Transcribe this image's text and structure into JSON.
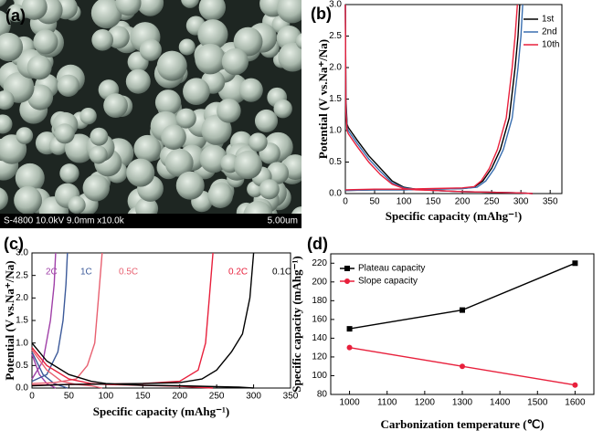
{
  "image_panel": {
    "label": "(a)",
    "caption": "S-4800 10.0kV 9.0mm x10.0k",
    "scale_bar": "5.00um"
  },
  "chart_data": [
    {
      "type": "line",
      "label": "(b)",
      "xlabel": "Specific capacity (mAhg⁻¹)",
      "ylabel": "Potential (V vs.Na⁺/Na)",
      "xlim": [
        0,
        370
      ],
      "xticks": [
        0,
        50,
        100,
        150,
        200,
        250,
        300,
        350
      ],
      "ylim": [
        0,
        3.0
      ],
      "yticks": [
        {
          "value": 0,
          "label": "0.0"
        },
        0.5,
        {
          "value": 1,
          "label": "1.0"
        },
        1.5,
        {
          "value": 2,
          "label": "2.0"
        },
        2.5,
        {
          "value": 3,
          "label": "3.0"
        }
      ],
      "legend": "upper right",
      "series": [
        {
          "name": "1st",
          "color": "#000000",
          "x": [
            0,
            1,
            3,
            5,
            20,
            40,
            60,
            80,
            100,
            120,
            150,
            200,
            250,
            300,
            320,
            null,
            0,
            50,
            100,
            150,
            200,
            220,
            235,
            250,
            265,
            280,
            290,
            295,
            298
          ],
          "values": [
            3.0,
            1.5,
            1.1,
            1.05,
            0.85,
            0.6,
            0.4,
            0.2,
            0.1,
            0.07,
            0.05,
            0.03,
            0.02,
            0.01,
            0.0,
            null,
            0.05,
            0.06,
            0.06,
            0.07,
            0.08,
            0.1,
            0.2,
            0.4,
            0.7,
            1.2,
            2.0,
            2.5,
            3.0
          ]
        },
        {
          "name": "2nd",
          "color": "#3a6fb0",
          "x": [
            0,
            1,
            3,
            5,
            20,
            40,
            60,
            80,
            100,
            120,
            150,
            200,
            250,
            300,
            320,
            null,
            0,
            50,
            100,
            150,
            200,
            225,
            240,
            255,
            270,
            285,
            295,
            300,
            303
          ],
          "values": [
            3.0,
            1.4,
            1.05,
            1.0,
            0.8,
            0.55,
            0.35,
            0.17,
            0.09,
            0.07,
            0.05,
            0.03,
            0.02,
            0.01,
            0.0,
            null,
            0.05,
            0.06,
            0.06,
            0.07,
            0.08,
            0.1,
            0.2,
            0.4,
            0.7,
            1.2,
            2.0,
            2.5,
            3.0
          ]
        },
        {
          "name": "10th",
          "color": "#e8203c",
          "x": [
            0,
            1,
            3,
            5,
            20,
            40,
            60,
            80,
            100,
            120,
            150,
            200,
            250,
            300,
            320,
            null,
            0,
            50,
            100,
            150,
            200,
            220,
            232,
            246,
            260,
            275,
            285,
            290,
            294
          ],
          "values": [
            3.0,
            1.3,
            1.0,
            0.95,
            0.75,
            0.5,
            0.3,
            0.15,
            0.08,
            0.06,
            0.05,
            0.03,
            0.02,
            0.01,
            0.0,
            null,
            0.06,
            0.07,
            0.07,
            0.08,
            0.09,
            0.11,
            0.2,
            0.4,
            0.7,
            1.2,
            2.0,
            2.5,
            3.0
          ]
        }
      ]
    },
    {
      "type": "line",
      "label": "(c)",
      "xlabel": "Specific capacity (mAhg⁻¹)",
      "ylabel": "Potential (V vs.Na⁺/Na)",
      "xlim": [
        0,
        350
      ],
      "xticks": [
        0,
        50,
        100,
        150,
        200,
        250,
        300,
        350
      ],
      "ylim": [
        0,
        3.0
      ],
      "yticks": [
        {
          "value": 0,
          "label": "0.0"
        },
        0.5,
        {
          "value": 1,
          "label": "1.0"
        },
        1.5,
        {
          "value": 2,
          "label": "2.0"
        },
        2.5,
        {
          "value": 3,
          "label": "3.0"
        }
      ],
      "series": [
        {
          "name": "2C",
          "color": "#a040a8",
          "x": [
            0,
            10,
            20,
            32,
            null,
            0,
            15,
            25,
            30,
            32
          ],
          "values": [
            0.75,
            0.3,
            0.1,
            0.0,
            null,
            0.2,
            0.6,
            1.5,
            2.3,
            3.0
          ]
        },
        {
          "name": "1C",
          "color": "#3c5a9a",
          "x": [
            0,
            15,
            30,
            48,
            null,
            0,
            20,
            35,
            42,
            46,
            48
          ],
          "values": [
            0.8,
            0.3,
            0.1,
            0.0,
            null,
            0.15,
            0.3,
            0.8,
            1.5,
            2.3,
            3.0
          ]
        },
        {
          "name": "0.5C",
          "color": "#e86070",
          "x": [
            0,
            20,
            40,
            60,
            80,
            95,
            null,
            0,
            30,
            60,
            75,
            85,
            90,
            95
          ],
          "values": [
            0.85,
            0.4,
            0.15,
            0.08,
            0.05,
            0.0,
            null,
            0.1,
            0.12,
            0.2,
            0.5,
            1.0,
            2.0,
            3.0
          ]
        },
        {
          "name": "0.2C",
          "color": "#e8203c",
          "x": [
            0,
            20,
            50,
            80,
            100,
            150,
            200,
            245,
            null,
            0,
            50,
            100,
            150,
            200,
            225,
            235,
            240,
            245
          ],
          "values": [
            0.9,
            0.5,
            0.2,
            0.1,
            0.08,
            0.06,
            0.04,
            0.0,
            null,
            0.06,
            0.08,
            0.09,
            0.1,
            0.15,
            0.4,
            1.0,
            2.0,
            3.0
          ]
        },
        {
          "name": "0.1C",
          "color": "#000000",
          "x": [
            0,
            5,
            20,
            50,
            80,
            100,
            150,
            200,
            250,
            280,
            300,
            null,
            0,
            50,
            100,
            150,
            200,
            230,
            250,
            270,
            285,
            295,
            300
          ],
          "values": [
            1.0,
            0.9,
            0.6,
            0.3,
            0.15,
            0.1,
            0.06,
            0.05,
            0.03,
            0.02,
            0.0,
            null,
            0.05,
            0.08,
            0.09,
            0.1,
            0.12,
            0.2,
            0.4,
            0.8,
            1.2,
            2.0,
            3.0
          ]
        }
      ]
    },
    {
      "type": "line",
      "label": "(d)",
      "xlabel": "Carbonization temperature (℃)",
      "ylabel": "Specific capacity (mAhg⁻¹)",
      "xlim": [
        950,
        1650
      ],
      "xticks": [
        1000,
        1100,
        1200,
        1300,
        1400,
        1500,
        1600
      ],
      "ylim": [
        80,
        230
      ],
      "yticks": [
        80,
        100,
        120,
        140,
        160,
        180,
        200,
        220
      ],
      "legend": "upper left",
      "series": [
        {
          "name": "Plateau capacity",
          "color": "#000000",
          "marker": "square",
          "x": [
            1000,
            1300,
            1600
          ],
          "values": [
            150,
            170,
            220
          ]
        },
        {
          "name": "Slope capacity",
          "color": "#e8203c",
          "marker": "circle",
          "x": [
            1000,
            1300,
            1600
          ],
          "values": [
            130,
            110,
            90
          ]
        }
      ]
    }
  ]
}
